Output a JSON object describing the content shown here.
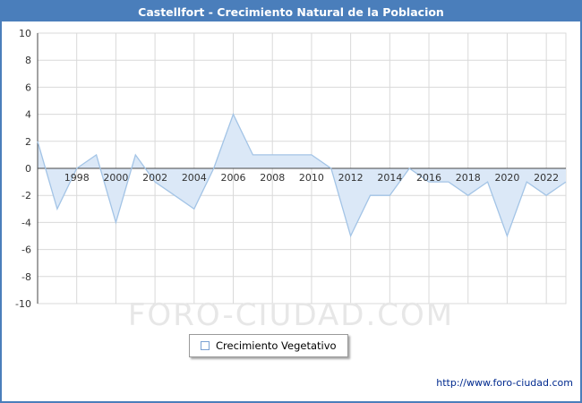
{
  "header": {
    "title": "Castellfort - Crecimiento Natural de la Poblacion",
    "bg_color": "#4a7ebb"
  },
  "chart_data": {
    "type": "area",
    "title": "Castellfort - Crecimiento Natural de la Poblacion",
    "series_name": "Crecimiento Vegetativo",
    "x": [
      1996,
      1997,
      1998,
      1999,
      2000,
      2001,
      2002,
      2003,
      2004,
      2005,
      2006,
      2007,
      2008,
      2009,
      2010,
      2011,
      2012,
      2013,
      2014,
      2015,
      2016,
      2017,
      2018,
      2019,
      2020,
      2021,
      2022,
      2023
    ],
    "values": [
      2,
      -3,
      0,
      1,
      -4,
      1,
      -1,
      -2,
      -3,
      0,
      4,
      1,
      1,
      1,
      1,
      0,
      -5,
      -2,
      -2,
      0,
      -1,
      -1,
      -2,
      -1,
      -5,
      -1,
      -2,
      -1
    ],
    "ylim": [
      -10,
      10
    ],
    "yticks": [
      10,
      8,
      6,
      4,
      2,
      0,
      -2,
      -4,
      -6,
      -8,
      -10
    ],
    "xticks": [
      1998,
      2000,
      2002,
      2004,
      2006,
      2008,
      2010,
      2012,
      2014,
      2016,
      2018,
      2020,
      2022
    ],
    "grid": true,
    "legend_position": "bottom",
    "line_color": "#a3c4e6",
    "fill_color": "#dbe8f7",
    "grid_color": "#d9d9d9",
    "axis_color": "#444444",
    "tick_label_color": "#333333"
  },
  "legend": {
    "label": "Crecimiento Vegetativo"
  },
  "watermark": {
    "text": "FORO-CIUDAD.COM"
  },
  "footer": {
    "url": "http://www.foro-ciudad.com"
  }
}
